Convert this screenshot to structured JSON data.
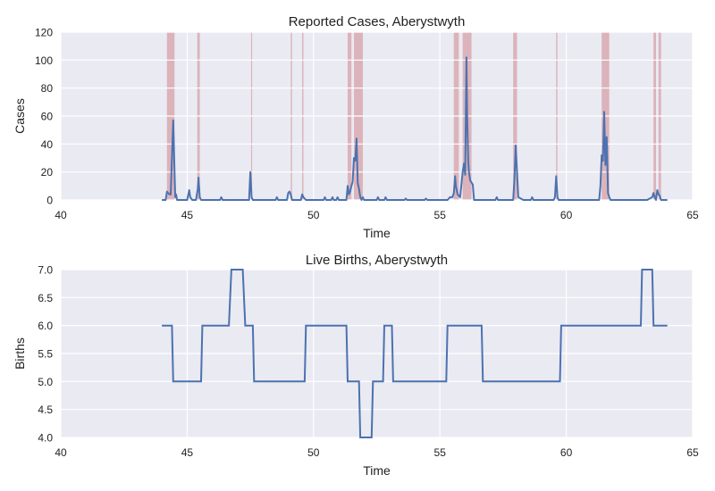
{
  "chart_data": [
    {
      "type": "line",
      "title": "Reported Cases, Aberystwyth",
      "xlabel": "Time",
      "ylabel": "Cases",
      "xlim": [
        40,
        65
      ],
      "ylim": [
        0,
        120
      ],
      "xticks": [
        "40",
        "45",
        "50",
        "55",
        "60",
        "65"
      ],
      "yticks": [
        "0",
        "20",
        "40",
        "60",
        "80",
        "100",
        "120"
      ],
      "grid": true,
      "line_color": "#4c72b0",
      "shade_color": "#c44e52",
      "highlight_intervals": [
        [
          44.2,
          44.5
        ],
        [
          45.4,
          45.5
        ],
        [
          47.53,
          47.57
        ],
        [
          49.1,
          49.15
        ],
        [
          49.55,
          49.6
        ],
        [
          51.35,
          51.5
        ],
        [
          51.6,
          51.95
        ],
        [
          55.55,
          55.75
        ],
        [
          55.9,
          56.25
        ],
        [
          57.9,
          58.05
        ],
        [
          59.6,
          59.65
        ],
        [
          61.4,
          61.7
        ],
        [
          63.45,
          63.55
        ],
        [
          63.65,
          63.75
        ]
      ],
      "series": [
        {
          "x": [
            44.0,
            44.1,
            44.15,
            44.2,
            44.25,
            44.3,
            44.35,
            44.4,
            44.45,
            44.5,
            44.53,
            44.56,
            44.6,
            44.65,
            44.7,
            44.72,
            44.8,
            45.0,
            45.08,
            45.12,
            45.2,
            45.35,
            45.42,
            45.45,
            45.5,
            45.55,
            45.6,
            46.3,
            46.35,
            46.4,
            47.45,
            47.5,
            47.55,
            47.6,
            47.7,
            48.5,
            48.55,
            48.6,
            48.95,
            49.0,
            49.05,
            49.1,
            49.15,
            49.3,
            49.5,
            49.55,
            49.6,
            49.7,
            50.4,
            50.45,
            50.5,
            50.7,
            50.75,
            50.8,
            50.9,
            50.95,
            51.0,
            51.3,
            51.35,
            51.4,
            51.45,
            51.5,
            51.55,
            51.6,
            51.65,
            51.7,
            51.75,
            51.8,
            51.85,
            51.9,
            51.95,
            52.0,
            52.05,
            52.5,
            52.55,
            52.6,
            52.8,
            52.85,
            52.9,
            53.6,
            53.65,
            53.7,
            54.4,
            54.45,
            54.5,
            55.0,
            55.1,
            55.3,
            55.4,
            55.5,
            55.55,
            55.6,
            55.63,
            55.7,
            55.8,
            55.9,
            55.95,
            56.0,
            56.05,
            56.08,
            56.12,
            56.15,
            56.2,
            56.3,
            56.35,
            56.4,
            56.5,
            57.2,
            57.25,
            57.3,
            57.8,
            57.9,
            57.95,
            58.0,
            58.05,
            58.1,
            58.3,
            58.6,
            58.65,
            58.7,
            59.5,
            59.55,
            59.6,
            59.65,
            59.7,
            61.3,
            61.35,
            61.4,
            61.45,
            61.5,
            61.55,
            61.6,
            61.65,
            61.7,
            61.75,
            62.0,
            63.2,
            63.4,
            63.45,
            63.5,
            63.55,
            63.6,
            63.65,
            63.7,
            63.75,
            63.8,
            63.85,
            63.9,
            64.0
          ],
          "values": [
            0,
            0,
            0,
            6,
            5,
            4,
            4,
            30,
            57,
            20,
            2,
            4,
            0,
            0,
            0,
            0,
            0,
            0,
            7,
            2,
            0,
            0,
            8,
            16,
            2,
            0,
            0,
            0,
            2,
            0,
            0,
            20,
            2,
            0,
            0,
            0,
            2,
            0,
            0,
            5,
            6,
            4,
            0,
            0,
            0,
            4,
            2,
            0,
            0,
            2,
            0,
            0,
            2,
            0,
            0,
            2,
            0,
            0,
            10,
            4,
            6,
            10,
            13,
            30,
            28,
            44,
            12,
            8,
            2,
            0,
            2,
            0,
            0,
            0,
            2,
            0,
            0,
            2,
            0,
            0,
            1,
            0,
            0,
            1,
            0,
            0,
            0,
            0,
            2,
            2,
            5,
            17,
            10,
            4,
            2,
            20,
            26,
            18,
            102,
            60,
            28,
            20,
            14,
            11,
            0,
            0,
            0,
            0,
            2,
            0,
            0,
            0,
            15,
            39,
            20,
            2,
            0,
            0,
            2,
            0,
            0,
            2,
            17,
            2,
            0,
            0,
            10,
            32,
            28,
            63,
            25,
            45,
            5,
            2,
            0,
            0,
            0,
            2,
            5,
            2,
            0,
            7,
            4,
            3,
            0,
            0,
            0,
            0,
            0
          ]
        }
      ]
    },
    {
      "type": "line",
      "title": "Live Births, Aberystwyth",
      "xlabel": "Time",
      "ylabel": "Births",
      "xlim": [
        40,
        65
      ],
      "ylim": [
        4.0,
        7.0
      ],
      "xticks": [
        "40",
        "45",
        "50",
        "55",
        "60",
        "65"
      ],
      "yticks": [
        "4.0",
        "4.5",
        "5.0",
        "5.5",
        "6.0",
        "6.5",
        "7.0"
      ],
      "grid": true,
      "line_color": "#4c72b0",
      "series": [
        {
          "x": [
            44.0,
            44.4,
            44.45,
            45.55,
            45.6,
            46.65,
            46.75,
            47.2,
            47.3,
            47.6,
            47.65,
            49.65,
            49.7,
            51.3,
            51.35,
            51.8,
            51.85,
            52.3,
            52.35,
            52.75,
            52.8,
            53.1,
            53.15,
            55.25,
            55.3,
            56.65,
            56.7,
            59.75,
            59.8,
            62.95,
            63.0,
            63.4,
            63.45,
            64.0
          ],
          "values": [
            6.0,
            6.0,
            5.0,
            5.0,
            6.0,
            6.0,
            7.0,
            7.0,
            6.0,
            6.0,
            5.0,
            5.0,
            6.0,
            6.0,
            5.0,
            5.0,
            4.0,
            4.0,
            5.0,
            5.0,
            6.0,
            6.0,
            5.0,
            5.0,
            6.0,
            6.0,
            5.0,
            5.0,
            6.0,
            6.0,
            7.0,
            7.0,
            6.0,
            6.0
          ]
        }
      ]
    }
  ]
}
